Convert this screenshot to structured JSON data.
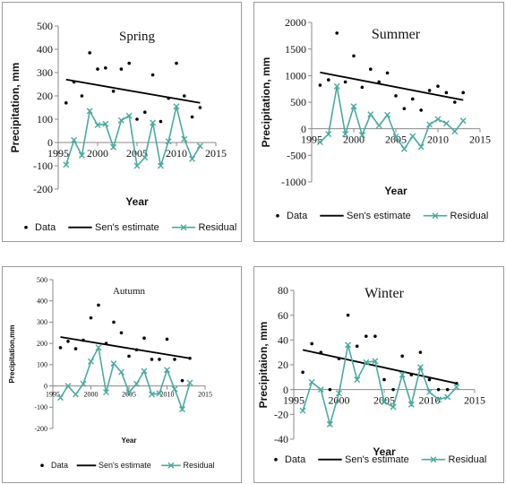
{
  "colors": {
    "data": "#000000",
    "sen": "#000000",
    "residual": "#4aa9a0",
    "axis": "#888888"
  },
  "chart_data": [
    {
      "type": "line",
      "title": "Spring",
      "xlabel": "Year",
      "ylabel": "Precipitation, mm",
      "xlim": [
        1995,
        2015
      ],
      "ylim": [
        -200,
        500
      ],
      "xticks": [
        1995,
        2000,
        2005,
        2010,
        2015
      ],
      "xtick_labels": [
        "1995",
        "2000",
        "2005",
        "2010",
        "2015"
      ],
      "yticks": [
        -200,
        -100,
        0,
        100,
        200,
        300,
        400,
        500
      ],
      "ytick_labels": [
        "-200",
        "-100",
        "0",
        "100",
        "200",
        "300",
        "400",
        "500"
      ],
      "legend": [
        "Data",
        "Sen's estimate",
        "Residual"
      ],
      "series": [
        {
          "name": "Data",
          "kind": "scatter",
          "x": [
            1996,
            1997,
            1998,
            1999,
            2000,
            2001,
            2002,
            2003,
            2004,
            2005,
            2006,
            2007,
            2008,
            2009,
            2010,
            2011,
            2012,
            2013
          ],
          "y": [
            170,
            260,
            200,
            385,
            315,
            320,
            220,
            315,
            340,
            100,
            130,
            290,
            90,
            190,
            340,
            200,
            110,
            150
          ]
        },
        {
          "name": "Sen's estimate",
          "kind": "line",
          "x": [
            1996,
            2013
          ],
          "y": [
            270,
            170
          ]
        },
        {
          "name": "Residual",
          "kind": "line",
          "x": [
            1996,
            1997,
            1998,
            1999,
            2000,
            2001,
            2002,
            2003,
            2004,
            2005,
            2006,
            2007,
            2008,
            2009,
            2010,
            2011,
            2012,
            2013
          ],
          "y": [
            -95,
            10,
            -55,
            135,
            75,
            80,
            -20,
            95,
            115,
            -100,
            -65,
            85,
            -100,
            5,
            155,
            15,
            -70,
            -15
          ]
        }
      ]
    },
    {
      "type": "line",
      "title": "Summer",
      "xlabel": "Year",
      "ylabel": "Precipitation, mm",
      "xlim": [
        1995,
        2015
      ],
      "ylim": [
        -1000,
        2000
      ],
      "xticks": [
        1995,
        2000,
        2005,
        2010,
        2015
      ],
      "xtick_labels": [
        "1995",
        "2000",
        "2005",
        "2010",
        "2015"
      ],
      "yticks": [
        -1000,
        -500,
        0,
        500,
        1000,
        1500,
        2000
      ],
      "ytick_labels": [
        "-1000",
        "-500",
        "0",
        "500",
        "1000",
        "1500",
        "2000"
      ],
      "legend": [
        "Data",
        "Sen's estimate",
        "Residual"
      ],
      "series": [
        {
          "name": "Data",
          "kind": "scatter",
          "x": [
            1996,
            1997,
            1998,
            1999,
            2000,
            2001,
            2002,
            2003,
            2004,
            2005,
            2006,
            2007,
            2008,
            2009,
            2010,
            2011,
            2012,
            2013
          ],
          "y": [
            820,
            920,
            1800,
            880,
            1370,
            780,
            1120,
            880,
            1050,
            620,
            380,
            560,
            350,
            720,
            800,
            680,
            500,
            680
          ]
        },
        {
          "name": "Sen's estimate",
          "kind": "line",
          "x": [
            1996,
            2013
          ],
          "y": [
            1060,
            540
          ]
        },
        {
          "name": "Residual",
          "kind": "line",
          "x": [
            1996,
            1997,
            1998,
            1999,
            2000,
            2001,
            2002,
            2003,
            2004,
            2005,
            2006,
            2007,
            2008,
            2009,
            2010,
            2011,
            2012,
            2013
          ],
          "y": [
            -250,
            -100,
            800,
            -100,
            420,
            -120,
            270,
            60,
            260,
            -150,
            -380,
            -140,
            -340,
            80,
            180,
            100,
            -50,
            150
          ]
        }
      ]
    },
    {
      "type": "line",
      "title": "Autumn",
      "xlabel": "Year",
      "ylabel": "Precipitation,mm",
      "xlim": [
        1995,
        2015
      ],
      "ylim": [
        -200,
        500
      ],
      "xticks": [
        1995,
        2000,
        2005,
        2010,
        2015
      ],
      "xtick_labels": [
        "1995",
        "2000",
        "2005",
        "2010",
        "2015"
      ],
      "yticks": [
        -200,
        -100,
        0,
        100,
        200,
        300,
        400,
        500
      ],
      "ytick_labels": [
        "-200",
        "-100",
        "0",
        "100",
        "200",
        "300",
        "400",
        "500"
      ],
      "legend": [
        "Data",
        "Sen's estimate",
        "Residual"
      ],
      "series": [
        {
          "name": "Data",
          "kind": "scatter",
          "x": [
            1996,
            1997,
            1998,
            1999,
            2000,
            2001,
            2002,
            2003,
            2004,
            2005,
            2006,
            2007,
            2008,
            2009,
            2010,
            2011,
            2012,
            2013
          ],
          "y": [
            180,
            210,
            175,
            215,
            320,
            380,
            200,
            300,
            250,
            140,
            170,
            225,
            125,
            125,
            220,
            125,
            25,
            130
          ]
        },
        {
          "name": "Sen's estimate",
          "kind": "line",
          "x": [
            1996,
            2013
          ],
          "y": [
            230,
            130
          ]
        },
        {
          "name": "Residual",
          "kind": "line",
          "x": [
            1996,
            1997,
            1998,
            1999,
            2000,
            2001,
            2002,
            2003,
            2004,
            2005,
            2006,
            2007,
            2008,
            2009,
            2010,
            2011,
            2012,
            2013
          ],
          "y": [
            -55,
            0,
            -40,
            10,
            115,
            180,
            -30,
            105,
            65,
            -30,
            10,
            70,
            -40,
            -35,
            75,
            -15,
            -110,
            15
          ]
        }
      ]
    },
    {
      "type": "line",
      "title": "Winter",
      "xlabel": "Year",
      "ylabel": "Precipitaion, mm",
      "xlim": [
        1995,
        2015
      ],
      "ylim": [
        -40,
        80
      ],
      "xticks": [
        1995,
        2000,
        2005,
        2010,
        2015
      ],
      "xtick_labels": [
        "1995",
        "2000",
        "2005",
        "2010",
        "2015"
      ],
      "yticks": [
        -40,
        -20,
        0,
        20,
        40,
        60,
        80
      ],
      "ytick_labels": [
        "-40",
        "-20",
        "0",
        "20",
        "40",
        "60",
        "80"
      ],
      "legend": [
        "Data",
        "Sen's estimate",
        "Residual"
      ],
      "series": [
        {
          "name": "Data",
          "kind": "scatter",
          "x": [
            1996,
            1997,
            1998,
            1999,
            2000,
            2001,
            2002,
            2003,
            2004,
            2005,
            2006,
            2007,
            2008,
            2009,
            2010,
            2011,
            2012,
            2013
          ],
          "y": [
            14,
            37,
            30,
            0,
            25,
            60,
            35,
            43,
            43,
            8,
            0,
            27,
            12,
            30,
            8,
            0,
            0,
            5
          ]
        },
        {
          "name": "Sen's estimate",
          "kind": "line",
          "x": [
            1996,
            2013
          ],
          "y": [
            32,
            5
          ]
        },
        {
          "name": "Residual",
          "kind": "line",
          "x": [
            1996,
            1997,
            1998,
            1999,
            2000,
            2001,
            2002,
            2003,
            2004,
            2005,
            2006,
            2007,
            2008,
            2009,
            2010,
            2011,
            2012,
            2013
          ],
          "y": [
            -17,
            6,
            0,
            -28,
            -3,
            36,
            8,
            22,
            23,
            -10,
            -14,
            12,
            -12,
            18,
            -2,
            -8,
            -6,
            2
          ]
        }
      ]
    }
  ]
}
